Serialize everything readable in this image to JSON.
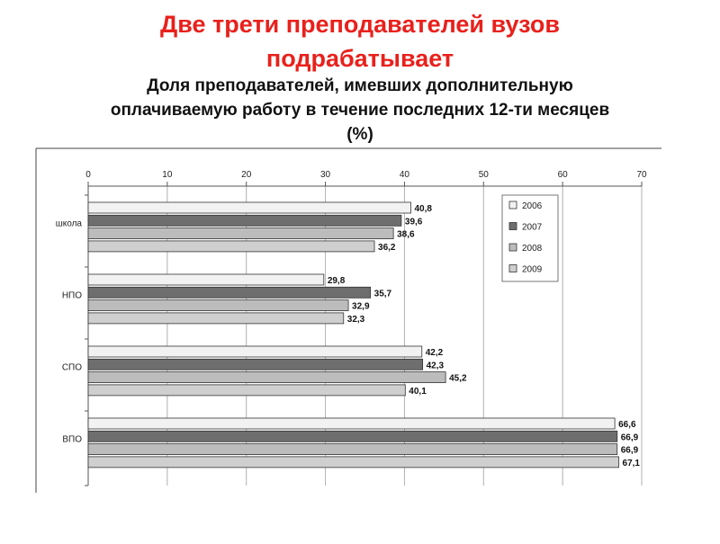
{
  "title_lines": [
    "Две трети преподавателей вузов",
    "подрабатывает"
  ],
  "subtitle_lines": [
    "Доля преподавателей, имевших дополнительную",
    "оплачиваемую работу в течение последних 12-ти месяцев",
    "(%)"
  ],
  "colors": {
    "title": "#e8211c",
    "series": [
      "#f2f2f2",
      "#6e6e6e",
      "#bcbcbc",
      "#cfcfcf"
    ]
  },
  "chart_data": {
    "type": "bar",
    "orientation": "horizontal",
    "categories": [
      "школа",
      "НПО",
      "СПО",
      "ВПО"
    ],
    "series": [
      {
        "name": "2006",
        "values": [
          40.8,
          29.8,
          42.2,
          66.6
        ],
        "labels": [
          "40,8",
          "29,8",
          "42,2",
          "66,6"
        ]
      },
      {
        "name": "2007",
        "values": [
          39.6,
          35.7,
          42.3,
          66.9
        ],
        "labels": [
          "39,6",
          "35,7",
          "42,3",
          "66,9"
        ]
      },
      {
        "name": "2008",
        "values": [
          38.6,
          32.9,
          45.2,
          66.9
        ],
        "labels": [
          "38,6",
          "32,9",
          "45,2",
          "66,9"
        ]
      },
      {
        "name": "2009",
        "values": [
          36.2,
          32.3,
          40.1,
          67.1
        ],
        "labels": [
          "36,2",
          "32,3",
          "40,1",
          "67,1"
        ]
      }
    ],
    "xlim": [
      0,
      70
    ],
    "ticks": [
      0,
      10,
      20,
      30,
      40,
      50,
      60,
      70
    ],
    "axis_position": "top",
    "grid": true,
    "legend_position": "top-right"
  }
}
